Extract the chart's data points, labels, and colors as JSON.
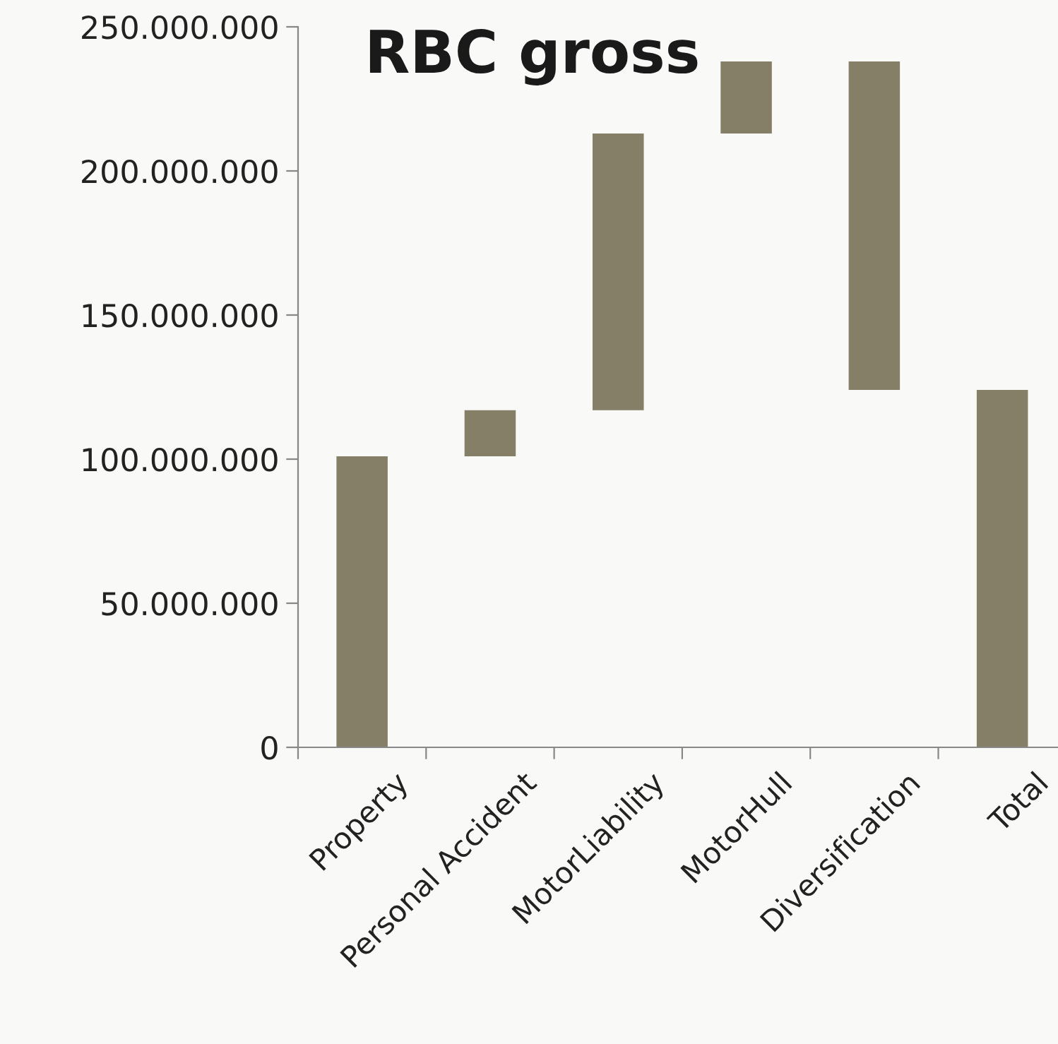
{
  "chart_data": {
    "type": "bar",
    "title": "RBC gross",
    "categories": [
      "Property",
      "Personal Accident",
      "MotorLiability",
      "MotorHull",
      "Diversification",
      "Total"
    ],
    "values": [
      101000000,
      16000000,
      96000000,
      25000000,
      -114000000,
      124000000
    ],
    "base": [
      0,
      101000000,
      117000000,
      213000000,
      238000000,
      0
    ],
    "color": "#857f68",
    "ylim": [
      0,
      250000000
    ],
    "yticks": [
      {
        "value": 0,
        "label": "0"
      },
      {
        "value": 50000000,
        "label": "50.000.000"
      },
      {
        "value": 100000000,
        "label": "100.000.000"
      },
      {
        "value": 150000000,
        "label": "150.000.000"
      },
      {
        "value": 200000000,
        "label": "200.000.000"
      },
      {
        "value": 250000000,
        "label": "250.000.000"
      }
    ],
    "grid": false,
    "legend": false
  }
}
